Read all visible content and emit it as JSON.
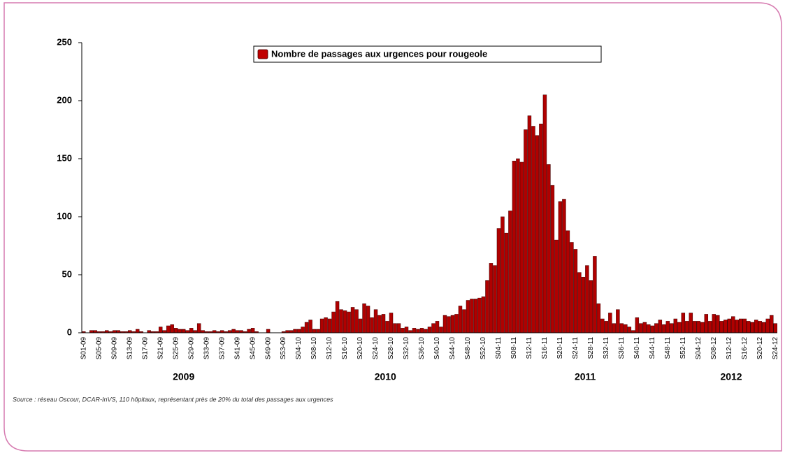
{
  "chart_data": {
    "type": "bar",
    "legend": "top",
    "series": [
      {
        "name": "Nombre de passages aux urgences pour rougeole",
        "color": "#b00000",
        "values": [
          1,
          0,
          2,
          2,
          1,
          1,
          2,
          1,
          2,
          2,
          1,
          1,
          2,
          1,
          3,
          1,
          0,
          2,
          1,
          1,
          5,
          2,
          6,
          7,
          4,
          3,
          3,
          2,
          4,
          2,
          8,
          2,
          1,
          1,
          2,
          1,
          2,
          1,
          2,
          3,
          2,
          2,
          1,
          3,
          4,
          1,
          0,
          0,
          3,
          0,
          0,
          0,
          1,
          2,
          2,
          3,
          3,
          5,
          9,
          11,
          3,
          3,
          12,
          13,
          12,
          18,
          27,
          20,
          19,
          18,
          22,
          20,
          12,
          25,
          23,
          13,
          20,
          15,
          16,
          10,
          17,
          8,
          8,
          4,
          5,
          2,
          4,
          3,
          4,
          3,
          5,
          8,
          10,
          5,
          15,
          14,
          15,
          16,
          23,
          20,
          28,
          29,
          29,
          30,
          31,
          45,
          60,
          58,
          90,
          100,
          86,
          105,
          148,
          150,
          147,
          175,
          187,
          178,
          170,
          180,
          205,
          145,
          127,
          80,
          113,
          115,
          88,
          78,
          72,
          52,
          48,
          58,
          45,
          66,
          25,
          12,
          10,
          17,
          8,
          20,
          8,
          7,
          5,
          2,
          13,
          8,
          9,
          7,
          6,
          8,
          11,
          7,
          10,
          8,
          12,
          9,
          17,
          10,
          17,
          10,
          10,
          9,
          16,
          10,
          16,
          15,
          10,
          11,
          12,
          14,
          11,
          12,
          12,
          10,
          9,
          11,
          10,
          9,
          12,
          15,
          8
        ]
      }
    ],
    "categories": [
      "S01-09",
      null,
      null,
      null,
      "S05-09",
      null,
      null,
      null,
      "S09-09",
      null,
      null,
      null,
      "S13-09",
      null,
      null,
      null,
      "S17-09",
      null,
      null,
      null,
      "S21-09",
      null,
      null,
      null,
      "S25-09",
      null,
      null,
      null,
      "S29-09",
      null,
      null,
      null,
      "S33-09",
      null,
      null,
      null,
      "S37-09",
      null,
      null,
      null,
      "S41-09",
      null,
      null,
      null,
      "S45-09",
      null,
      null,
      null,
      "S49-09",
      null,
      null,
      null,
      "S53-09",
      null,
      null,
      null,
      "S04-10",
      null,
      null,
      null,
      "S08-10",
      null,
      null,
      null,
      "S12-10",
      null,
      null,
      null,
      "S16-10",
      null,
      null,
      null,
      "S20-10",
      null,
      null,
      null,
      "S24-10",
      null,
      null,
      null,
      "S28-10",
      null,
      null,
      null,
      "S32-10",
      null,
      null,
      null,
      "S36-10",
      null,
      null,
      null,
      "S40-10",
      null,
      null,
      null,
      "S44-10",
      null,
      null,
      null,
      "S48-10",
      null,
      null,
      null,
      "S52-10",
      null,
      null,
      null,
      "S04-11",
      null,
      null,
      null,
      "S08-11",
      null,
      null,
      null,
      "S12-11",
      null,
      null,
      null,
      "S16-11",
      null,
      null,
      null,
      "S20-11",
      null,
      null,
      null,
      "S24-11",
      null,
      null,
      null,
      "S28-11",
      null,
      null,
      null,
      "S32-11",
      null,
      null,
      null,
      "S36-11",
      null,
      null,
      null,
      "S40-11",
      null,
      null,
      null,
      "S44-11",
      null,
      null,
      null,
      "S48-11",
      null,
      null,
      null,
      "S52-11",
      null,
      null,
      null,
      "S04-12",
      null,
      null,
      null,
      "S08-12",
      null,
      null,
      null,
      "S12-12",
      null,
      null,
      null,
      "S16-12",
      null,
      null,
      null,
      "S20-12",
      null,
      null,
      null,
      "S24-12"
    ],
    "years": [
      "2009",
      "2010",
      "2011",
      "2012"
    ],
    "ylim": [
      0,
      250
    ],
    "yticks": [
      0,
      50,
      100,
      150,
      200,
      250
    ],
    "grid": false,
    "source": "Source : réseau Oscour, DCAR-InVS, 110 hôpitaux, représentant près de 20% du total des passages aux urgences"
  }
}
